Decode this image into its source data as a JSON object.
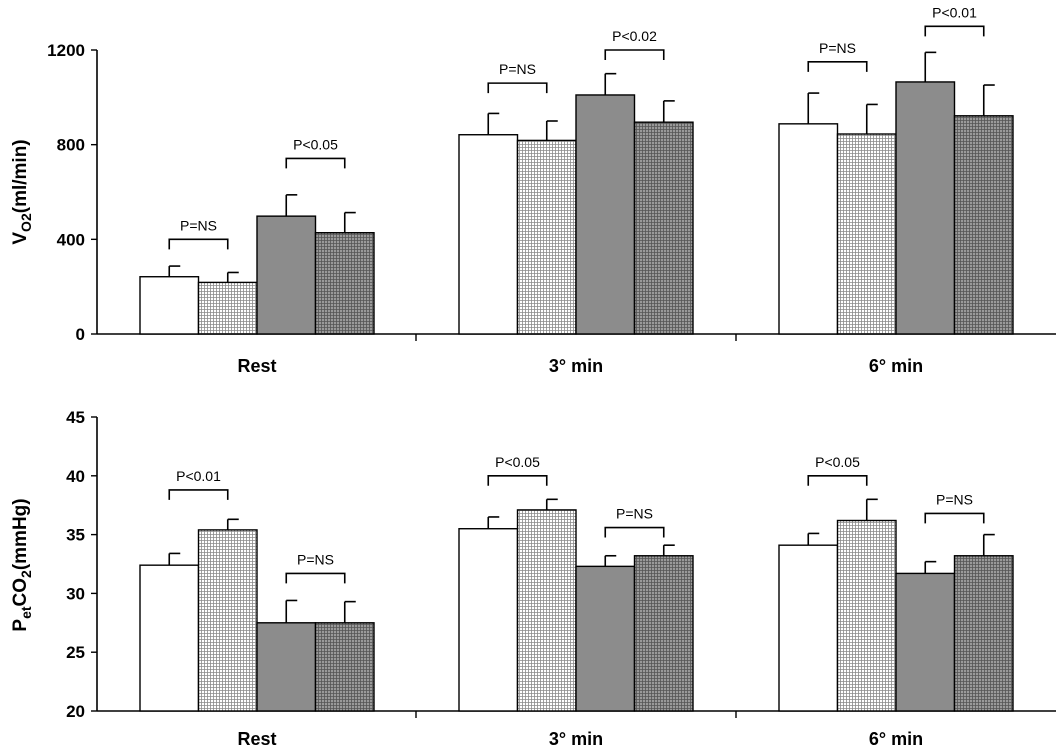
{
  "chart_data": [
    {
      "type": "bar",
      "ylabel": {
        "base": "V",
        "sub": "O2",
        "unit": "(ml/min)"
      },
      "categories": [
        "Rest",
        "3° min",
        "6° min"
      ],
      "yticks": [
        0,
        400,
        800,
        1200
      ],
      "ylim": [
        0,
        1200
      ],
      "grid": false,
      "series": [
        {
          "values": [
            242,
            842,
            888
          ],
          "errors": [
            45,
            90,
            130
          ]
        },
        {
          "values": [
            218,
            818,
            845
          ],
          "errors": [
            42,
            82,
            125
          ]
        },
        {
          "values": [
            498,
            1010,
            1065
          ],
          "errors": [
            90,
            90,
            125
          ]
        },
        {
          "values": [
            428,
            895,
            922
          ],
          "errors": [
            85,
            90,
            130
          ]
        }
      ],
      "significance": [
        {
          "category": 0,
          "pair": [
            0,
            1
          ],
          "label": "P=NS",
          "level": 400
        },
        {
          "category": 0,
          "pair": [
            2,
            3
          ],
          "label": "P<0.05",
          "level": 742
        },
        {
          "category": 1,
          "pair": [
            0,
            1
          ],
          "label": "P=NS",
          "level": 1060
        },
        {
          "category": 1,
          "pair": [
            2,
            3
          ],
          "label": "P<0.02",
          "level": 1200
        },
        {
          "category": 2,
          "pair": [
            0,
            1
          ],
          "label": "P=NS",
          "level": 1150
        },
        {
          "category": 2,
          "pair": [
            2,
            3
          ],
          "label": "P<0.01",
          "level": 1300
        }
      ]
    },
    {
      "type": "bar",
      "ylabel": {
        "base": "P",
        "sub": "et",
        "base2": "CO",
        "sub2": "2",
        "unit": "(mmHg)"
      },
      "categories": [
        "Rest",
        "3° min",
        "6° min"
      ],
      "yticks": [
        20,
        25,
        30,
        35,
        40,
        45
      ],
      "ylim": [
        20,
        45
      ],
      "grid": false,
      "series": [
        {
          "values": [
            32.4,
            35.5,
            34.1
          ],
          "errors": [
            1.0,
            1.0,
            1.0
          ]
        },
        {
          "values": [
            35.4,
            37.1,
            36.2
          ],
          "errors": [
            0.9,
            0.9,
            1.8
          ]
        },
        {
          "values": [
            27.5,
            32.3,
            31.7
          ],
          "errors": [
            1.9,
            0.9,
            1.0
          ]
        },
        {
          "values": [
            27.5,
            33.2,
            33.2
          ],
          "errors": [
            1.8,
            0.9,
            1.8
          ]
        }
      ],
      "significance": [
        {
          "category": 0,
          "pair": [
            0,
            1
          ],
          "label": "P<0.01",
          "level": 38.8
        },
        {
          "category": 0,
          "pair": [
            2,
            3
          ],
          "label": "P=NS",
          "level": 31.7
        },
        {
          "category": 1,
          "pair": [
            0,
            1
          ],
          "label": "P<0.05",
          "level": 40.0
        },
        {
          "category": 1,
          "pair": [
            2,
            3
          ],
          "label": "P=NS",
          "level": 35.6
        },
        {
          "category": 2,
          "pair": [
            0,
            1
          ],
          "label": "P<0.05",
          "level": 40.0
        },
        {
          "category": 2,
          "pair": [
            2,
            3
          ],
          "label": "P=NS",
          "level": 36.8
        }
      ]
    }
  ],
  "colors": {
    "axis": "#000000",
    "series_fills": [
      "#ffffff",
      "#dedede",
      "#8c8c8c",
      "#8c8c8c"
    ],
    "series_patterns": [
      "none",
      "fine-grid-light",
      "none",
      "fine-grid-dark"
    ]
  }
}
